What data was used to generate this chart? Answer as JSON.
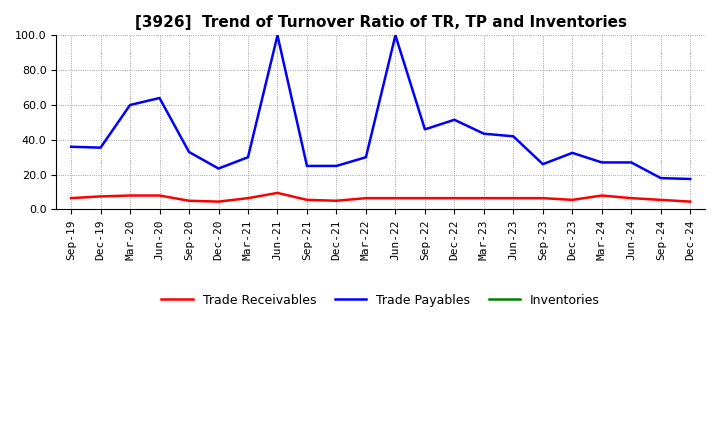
{
  "title": "[3926]  Trend of Turnover Ratio of TR, TP and Inventories",
  "xlabels": [
    "Sep-19",
    "Dec-19",
    "Mar-20",
    "Jun-20",
    "Sep-20",
    "Dec-20",
    "Mar-21",
    "Jun-21",
    "Sep-21",
    "Dec-21",
    "Mar-22",
    "Jun-22",
    "Sep-22",
    "Dec-22",
    "Mar-23",
    "Jun-23",
    "Sep-23",
    "Dec-23",
    "Mar-24",
    "Jun-24",
    "Sep-24",
    "Dec-24"
  ],
  "trade_receivables": [
    6.5,
    7.5,
    8.0,
    8.0,
    5.0,
    4.5,
    6.5,
    9.5,
    5.5,
    5.0,
    6.5,
    6.5,
    6.5,
    6.5,
    6.5,
    6.5,
    6.5,
    5.5,
    8.0,
    6.5,
    5.5,
    4.5
  ],
  "trade_payables": [
    36.0,
    35.5,
    60.0,
    64.0,
    33.0,
    23.5,
    30.0,
    100.0,
    25.0,
    25.0,
    30.0,
    100.0,
    46.0,
    51.5,
    43.5,
    42.0,
    26.0,
    32.5,
    27.0,
    27.0,
    18.0,
    17.5
  ],
  "inventories": [
    null,
    null,
    null,
    null,
    null,
    null,
    null,
    null,
    null,
    null,
    null,
    null,
    null,
    null,
    null,
    null,
    null,
    null,
    null,
    null,
    null,
    null
  ],
  "tr_color": "#ff0000",
  "tp_color": "#0000ff",
  "inv_color": "#008000",
  "ylim": [
    0.0,
    100.0
  ],
  "yticks": [
    0.0,
    20.0,
    40.0,
    60.0,
    80.0,
    100.0
  ],
  "background_color": "#ffffff",
  "grid_color": "#888888",
  "title_fontsize": 11,
  "tick_fontsize": 8,
  "linewidth": 1.8
}
